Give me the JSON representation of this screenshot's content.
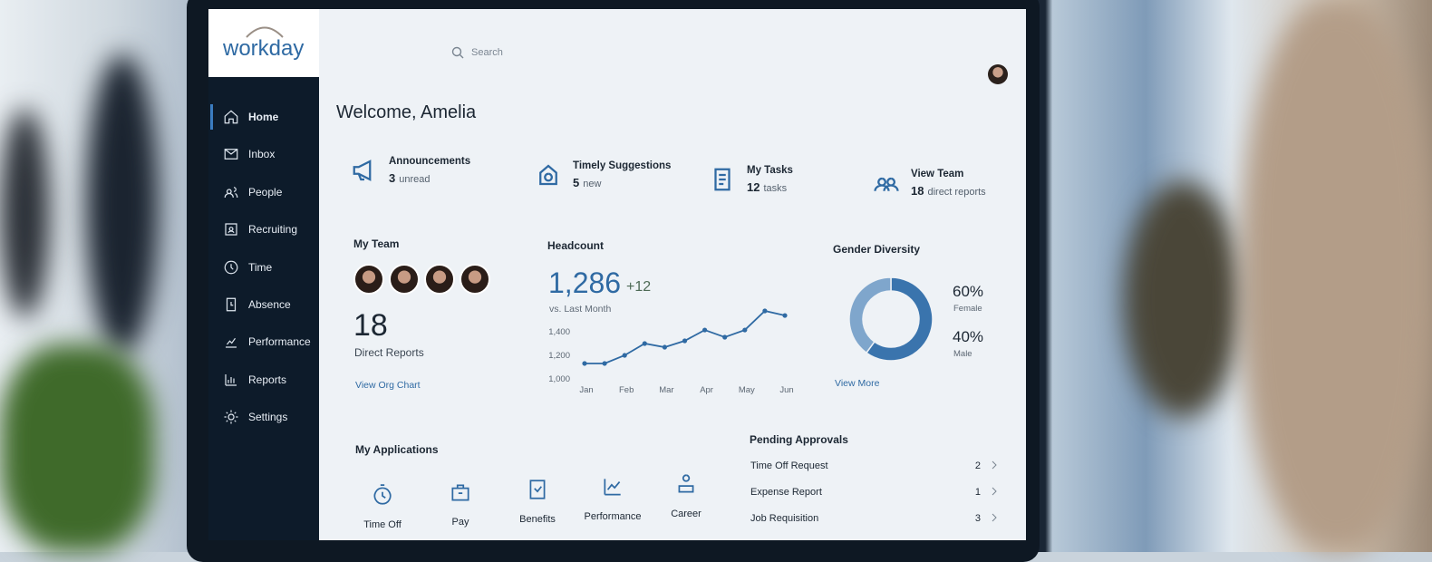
{
  "header": {
    "logo": "workday",
    "search": "Search"
  },
  "nav": [
    "Home",
    "Inbox",
    "People",
    "Recruiting",
    "Time",
    "Absence",
    "Performance",
    "Reports",
    "Settings"
  ],
  "welcome": "Welcome, Amelia",
  "cards": [
    {
      "title": "Announcements",
      "count": "3",
      "unit": "unread"
    },
    {
      "title": "Timely Suggestions",
      "count": "5",
      "unit": "new"
    },
    {
      "title": "My Tasks",
      "count": "12",
      "unit": "tasks"
    },
    {
      "title": "View Team",
      "count": "18",
      "unit": "direct reports"
    }
  ],
  "my_team": {
    "title": "My Team",
    "count": "18",
    "label": "Direct Reports",
    "link": "View Org Chart"
  },
  "headcount": {
    "title": "Headcount",
    "value": "1,286",
    "change": "+12",
    "note": "vs. Last Month"
  },
  "gender": {
    "title": "Gender Diversity",
    "link": "View More"
  },
  "chart_data": [
    {
      "type": "line",
      "x": [
        1,
        1.5,
        2,
        2.5,
        3,
        3.5,
        4,
        4.5,
        5,
        5.5,
        6
      ],
      "series": [
        {
          "values": [
            1131,
            1131,
            1200,
            1300,
            1269,
            1323,
            1415,
            1354,
            1415,
            1577,
            1538
          ],
          "color": "#2f6aa3"
        }
      ],
      "xlim": [
        1,
        6
      ],
      "xticks": [
        {
          "value": 1,
          "label": "Jan"
        },
        {
          "value": 2,
          "label": "Feb"
        },
        {
          "value": 3,
          "label": "Mar"
        },
        {
          "value": 4,
          "label": "Apr"
        },
        {
          "value": 5,
          "label": "May"
        },
        {
          "value": 6,
          "label": "Jun"
        }
      ],
      "ylim": [
        1000,
        1600
      ],
      "yticks": [
        {
          "value": 1000,
          "label": "1,000"
        },
        {
          "value": 1200,
          "label": "1,200"
        },
        {
          "value": 1400,
          "label": "1,400"
        }
      ]
    },
    {
      "type": "pie",
      "categories": [
        "Female",
        "Male"
      ],
      "values": [
        60,
        40
      ],
      "value_labels": [
        "60%",
        "40%"
      ],
      "colors": [
        "#3a74ad",
        "#7fa6cc"
      ],
      "donut": true
    }
  ],
  "applications": {
    "title": "My Applications",
    "items": [
      "Time Off",
      "Pay",
      "Benefits",
      "Performance",
      "Career"
    ]
  },
  "approvals": {
    "title": "Pending Approvals",
    "rows": [
      [
        "Time Off Request",
        "2"
      ],
      [
        "Expense Report",
        "1"
      ],
      [
        "Job Requisition",
        "3"
      ]
    ]
  }
}
